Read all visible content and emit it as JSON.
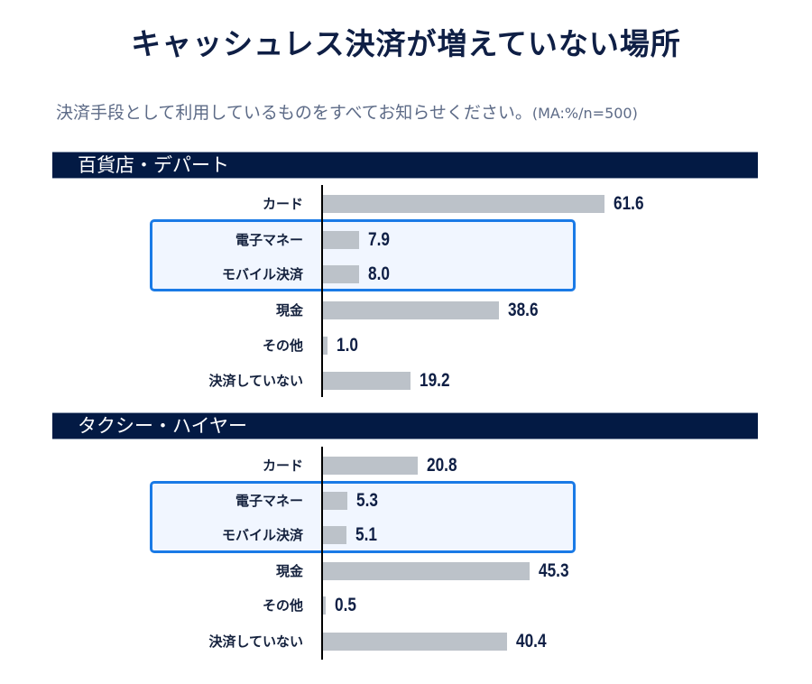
{
  "title": "キャッシュレス決済が増えていない場所",
  "subtitle": "決済手段として利用しているものをすべてお知らせください。",
  "subtitle_note": "(MA:%/n=500)",
  "colors": {
    "title": "#0f1f45",
    "header_bg": "#031a44",
    "bar": "#bcc2c9",
    "highlight_border": "#1a7ae6",
    "highlight_bg": "#f1f6ff"
  },
  "sections": [
    {
      "header": "百貨店・デパート",
      "rows": [
        {
          "label": "カード",
          "value": "61.6"
        },
        {
          "label": "電子マネー",
          "value": "7.9"
        },
        {
          "label": "モバイル決済",
          "value": "8.0"
        },
        {
          "label": "現金",
          "value": "38.6"
        },
        {
          "label": "その他",
          "value": "1.0"
        },
        {
          "label": "決済していない",
          "value": "19.2"
        }
      ]
    },
    {
      "header": "タクシー・ハイヤー",
      "rows": [
        {
          "label": "カード",
          "value": "20.8"
        },
        {
          "label": "電子マネー",
          "value": "5.3"
        },
        {
          "label": "モバイル決済",
          "value": "5.1"
        },
        {
          "label": "現金",
          "value": "45.3"
        },
        {
          "label": "その他",
          "value": "0.5"
        },
        {
          "label": "決済していない",
          "value": "40.4"
        }
      ]
    }
  ],
  "chart_data": [
    {
      "type": "bar",
      "orientation": "horizontal",
      "title": "キャッシュレス決済が増えていない場所 — 百貨店・デパート",
      "subtitle": "決済手段として利用しているものをすべてお知らせください。(MA:%/n=500)",
      "categories": [
        "カード",
        "電子マネー",
        "モバイル決済",
        "現金",
        "その他",
        "決済していない"
      ],
      "values": [
        61.6,
        7.9,
        8.0,
        38.6,
        1.0,
        19.2
      ],
      "highlighted": [
        "電子マネー",
        "モバイル決済"
      ],
      "xlabel": "",
      "ylabel": "",
      "unit": "%",
      "grid": false,
      "legend": "none"
    },
    {
      "type": "bar",
      "orientation": "horizontal",
      "title": "キャッシュレス決済が増えていない場所 — タクシー・ハイヤー",
      "subtitle": "決済手段として利用しているものをすべてお知らせください。(MA:%/n=500)",
      "categories": [
        "カード",
        "電子マネー",
        "モバイル決済",
        "現金",
        "その他",
        "決済していない"
      ],
      "values": [
        20.8,
        5.3,
        5.1,
        45.3,
        0.5,
        40.4
      ],
      "highlighted": [
        "電子マネー",
        "モバイル決済"
      ],
      "xlabel": "",
      "ylabel": "",
      "unit": "%",
      "grid": false,
      "legend": "none"
    }
  ]
}
